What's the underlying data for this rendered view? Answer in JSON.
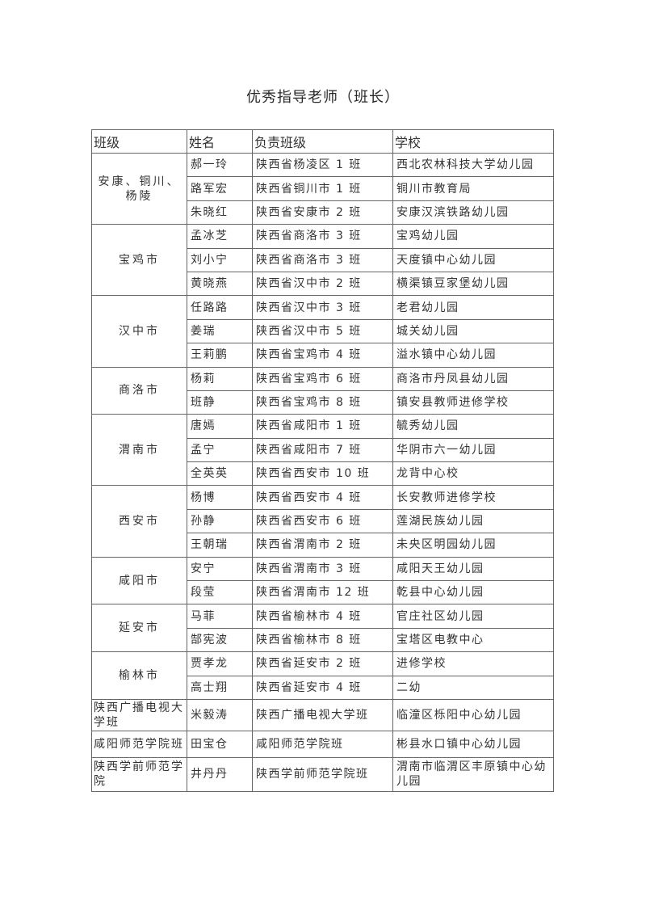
{
  "title": "优秀指导老师（班长）",
  "table": {
    "headers": [
      "班级",
      "姓名",
      "负责班级",
      "学校"
    ],
    "groups": [
      {
        "name": "安康、铜川、杨陵",
        "rows": [
          {
            "teacher": "郝一玲",
            "class": "陕西省杨凌区 1 班",
            "school": "西北农林科技大学幼儿园"
          },
          {
            "teacher": "路军宏",
            "class": "陕西省铜川市 1 班",
            "school": "铜川市教育局"
          },
          {
            "teacher": "朱晓红",
            "class": "陕西省安康市 2 班",
            "school": "安康汉滨铁路幼儿园"
          }
        ]
      },
      {
        "name": "宝鸡市",
        "rows": [
          {
            "teacher": "孟冰芝",
            "class": "陕西省商洛市 3 班",
            "school": "宝鸡幼儿园"
          },
          {
            "teacher": "刘小宁",
            "class": "陕西省商洛市 3 班",
            "school": "天度镇中心幼儿园"
          },
          {
            "teacher": "黄晓燕",
            "class": "陕西省汉中市 2 班",
            "school": "横渠镇豆家堡幼儿园"
          }
        ]
      },
      {
        "name": "汉中市",
        "rows": [
          {
            "teacher": "任路路",
            "class": "陕西省汉中市 3 班",
            "school": "老君幼儿园"
          },
          {
            "teacher": "姜瑞",
            "class": "陕西省汉中市 5 班",
            "school": "城关幼儿园"
          },
          {
            "teacher": "王莉鹏",
            "class": "陕西省宝鸡市 4 班",
            "school": "溢水镇中心幼儿园"
          }
        ]
      },
      {
        "name": "商洛市",
        "rows": [
          {
            "teacher": "杨莉",
            "class": "陕西省宝鸡市 6 班",
            "school": "商洛市丹凤县幼儿园"
          },
          {
            "teacher": "班静",
            "class": "陕西省宝鸡市 8 班",
            "school": "镇安县教师进修学校"
          }
        ]
      },
      {
        "name": "渭南市",
        "rows": [
          {
            "teacher": "唐嫣",
            "class": "陕西省咸阳市 1 班",
            "school": "毓秀幼儿园"
          },
          {
            "teacher": "孟宁",
            "class": "陕西省咸阳市 7 班",
            "school": "华阴市六一幼儿园"
          },
          {
            "teacher": "全英英",
            "class": "陕西省西安市 10 班",
            "school": "龙背中心校"
          }
        ]
      },
      {
        "name": "西安市",
        "rows": [
          {
            "teacher": "杨博",
            "class": "陕西省西安市 4 班",
            "school": "长安教师进修学校"
          },
          {
            "teacher": "孙静",
            "class": "陕西省西安市 6 班",
            "school": "莲湖民族幼儿园"
          },
          {
            "teacher": "王朝瑞",
            "class": "陕西省渭南市 2 班",
            "school": "未央区明园幼儿园"
          }
        ]
      },
      {
        "name": "咸阳市",
        "rows": [
          {
            "teacher": "安宁",
            "class": "陕西省渭南市 3 班",
            "school": "咸阳天王幼儿园"
          },
          {
            "teacher": "段莹",
            "class": "陕西省渭南市 12 班",
            "school": "乾县中心幼儿园"
          }
        ]
      },
      {
        "name": "延安市",
        "rows": [
          {
            "teacher": "马菲",
            "class": "陕西省榆林市 4 班",
            "school": "官庄社区幼儿园"
          },
          {
            "teacher": "郜宪波",
            "class": "陕西省榆林市 8 班",
            "school": "宝塔区电教中心"
          }
        ]
      },
      {
        "name": "榆林市",
        "rows": [
          {
            "teacher": "贾孝龙",
            "class": "陕西省延安市 2 班",
            "school": "进修学校"
          },
          {
            "teacher": "高士翔",
            "class": "陕西省延安市 4 班",
            "school": "二幼"
          }
        ]
      },
      {
        "name": "陕西广播电视大学班",
        "rows": [
          {
            "teacher": "米毅涛",
            "class": "陕西广播电视大学班",
            "school": "临潼区栎阳中心幼儿园"
          }
        ]
      },
      {
        "name": "咸阳师范学院班",
        "rows": [
          {
            "teacher": "田宝仓",
            "class": "咸阳师范学院班",
            "school": "彬县水口镇中心幼儿园"
          }
        ]
      },
      {
        "name": "陕西学前师范学院",
        "rows": [
          {
            "teacher": "井丹丹",
            "class": "陕西学前师范学院班",
            "school": "渭南市临渭区丰原镇中心幼儿园"
          }
        ]
      }
    ]
  }
}
